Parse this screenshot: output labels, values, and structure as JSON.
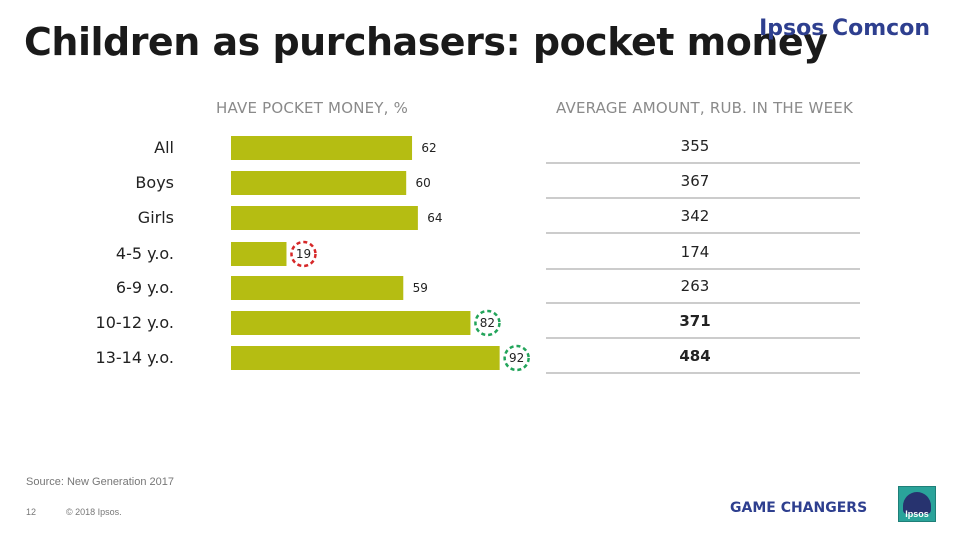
{
  "header": {
    "title": "Children as purchasers: pocket money",
    "brand": "Ipsos Comcon"
  },
  "chart_data": {
    "type": "bar",
    "orientation": "horizontal",
    "title": "HAVE POCKET MONEY, %",
    "categories": [
      "All",
      "Boys",
      "Girls",
      "4-5 y.o.",
      "6-9 y.o.",
      "10-12 y.o.",
      "13-14 y.o."
    ],
    "values": [
      62,
      60,
      64,
      19,
      59,
      82,
      92
    ],
    "bar_color": "#b5bd12",
    "highlights": [
      {
        "category": "4-5 y.o.",
        "color": "#d62728"
      },
      {
        "category": "10-12 y.o.",
        "color": "#22a45a"
      },
      {
        "category": "13-14 y.o.",
        "color": "#22a45a"
      }
    ],
    "xlim": [
      0,
      100
    ]
  },
  "table": {
    "header": "AVERAGE AMOUNT, RUB. IN THE WEEK",
    "rows": [
      {
        "value": "355",
        "bold": false
      },
      {
        "value": "367",
        "bold": false
      },
      {
        "value": "342",
        "bold": false
      },
      {
        "value": "174",
        "bold": false
      },
      {
        "value": "263",
        "bold": false
      },
      {
        "value": "371",
        "bold": true
      },
      {
        "value": "484",
        "bold": true
      }
    ]
  },
  "footer": {
    "source": "Source: New Generation 2017",
    "page": "12",
    "copyright": "© 2018 Ipsos.",
    "tagline": "GAME CHANGERS",
    "logo_text": "Ipsos"
  }
}
